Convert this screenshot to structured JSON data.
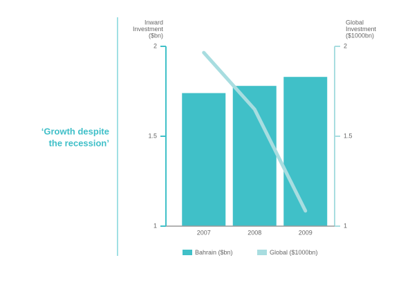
{
  "chart_data": {
    "type": "bar-line",
    "annotation": [
      "‘Growth despite",
      "the recession’"
    ],
    "y_label": [
      "Inward",
      "Investment",
      "($bn)"
    ],
    "y2_label": [
      "Global",
      "Investment",
      "($1000bn)"
    ],
    "categories": [
      "2007",
      "2008",
      "2009"
    ],
    "series": [
      {
        "name": "Bahrain ($bn)",
        "color": "#40c0c8",
        "type": "bar",
        "values": [
          1.74,
          1.78,
          1.83
        ]
      },
      {
        "name": "Global ($1000bn)",
        "color": "#a8dde0",
        "type": "line",
        "axis": "y2",
        "values": [
          1.965,
          1.65,
          1.085
        ]
      }
    ],
    "ylim": [
      1,
      2
    ],
    "yticks": [
      1,
      1.5,
      2
    ],
    "y2lim": [
      1,
      2
    ],
    "y2ticks": [
      1,
      1.5,
      2
    ]
  }
}
